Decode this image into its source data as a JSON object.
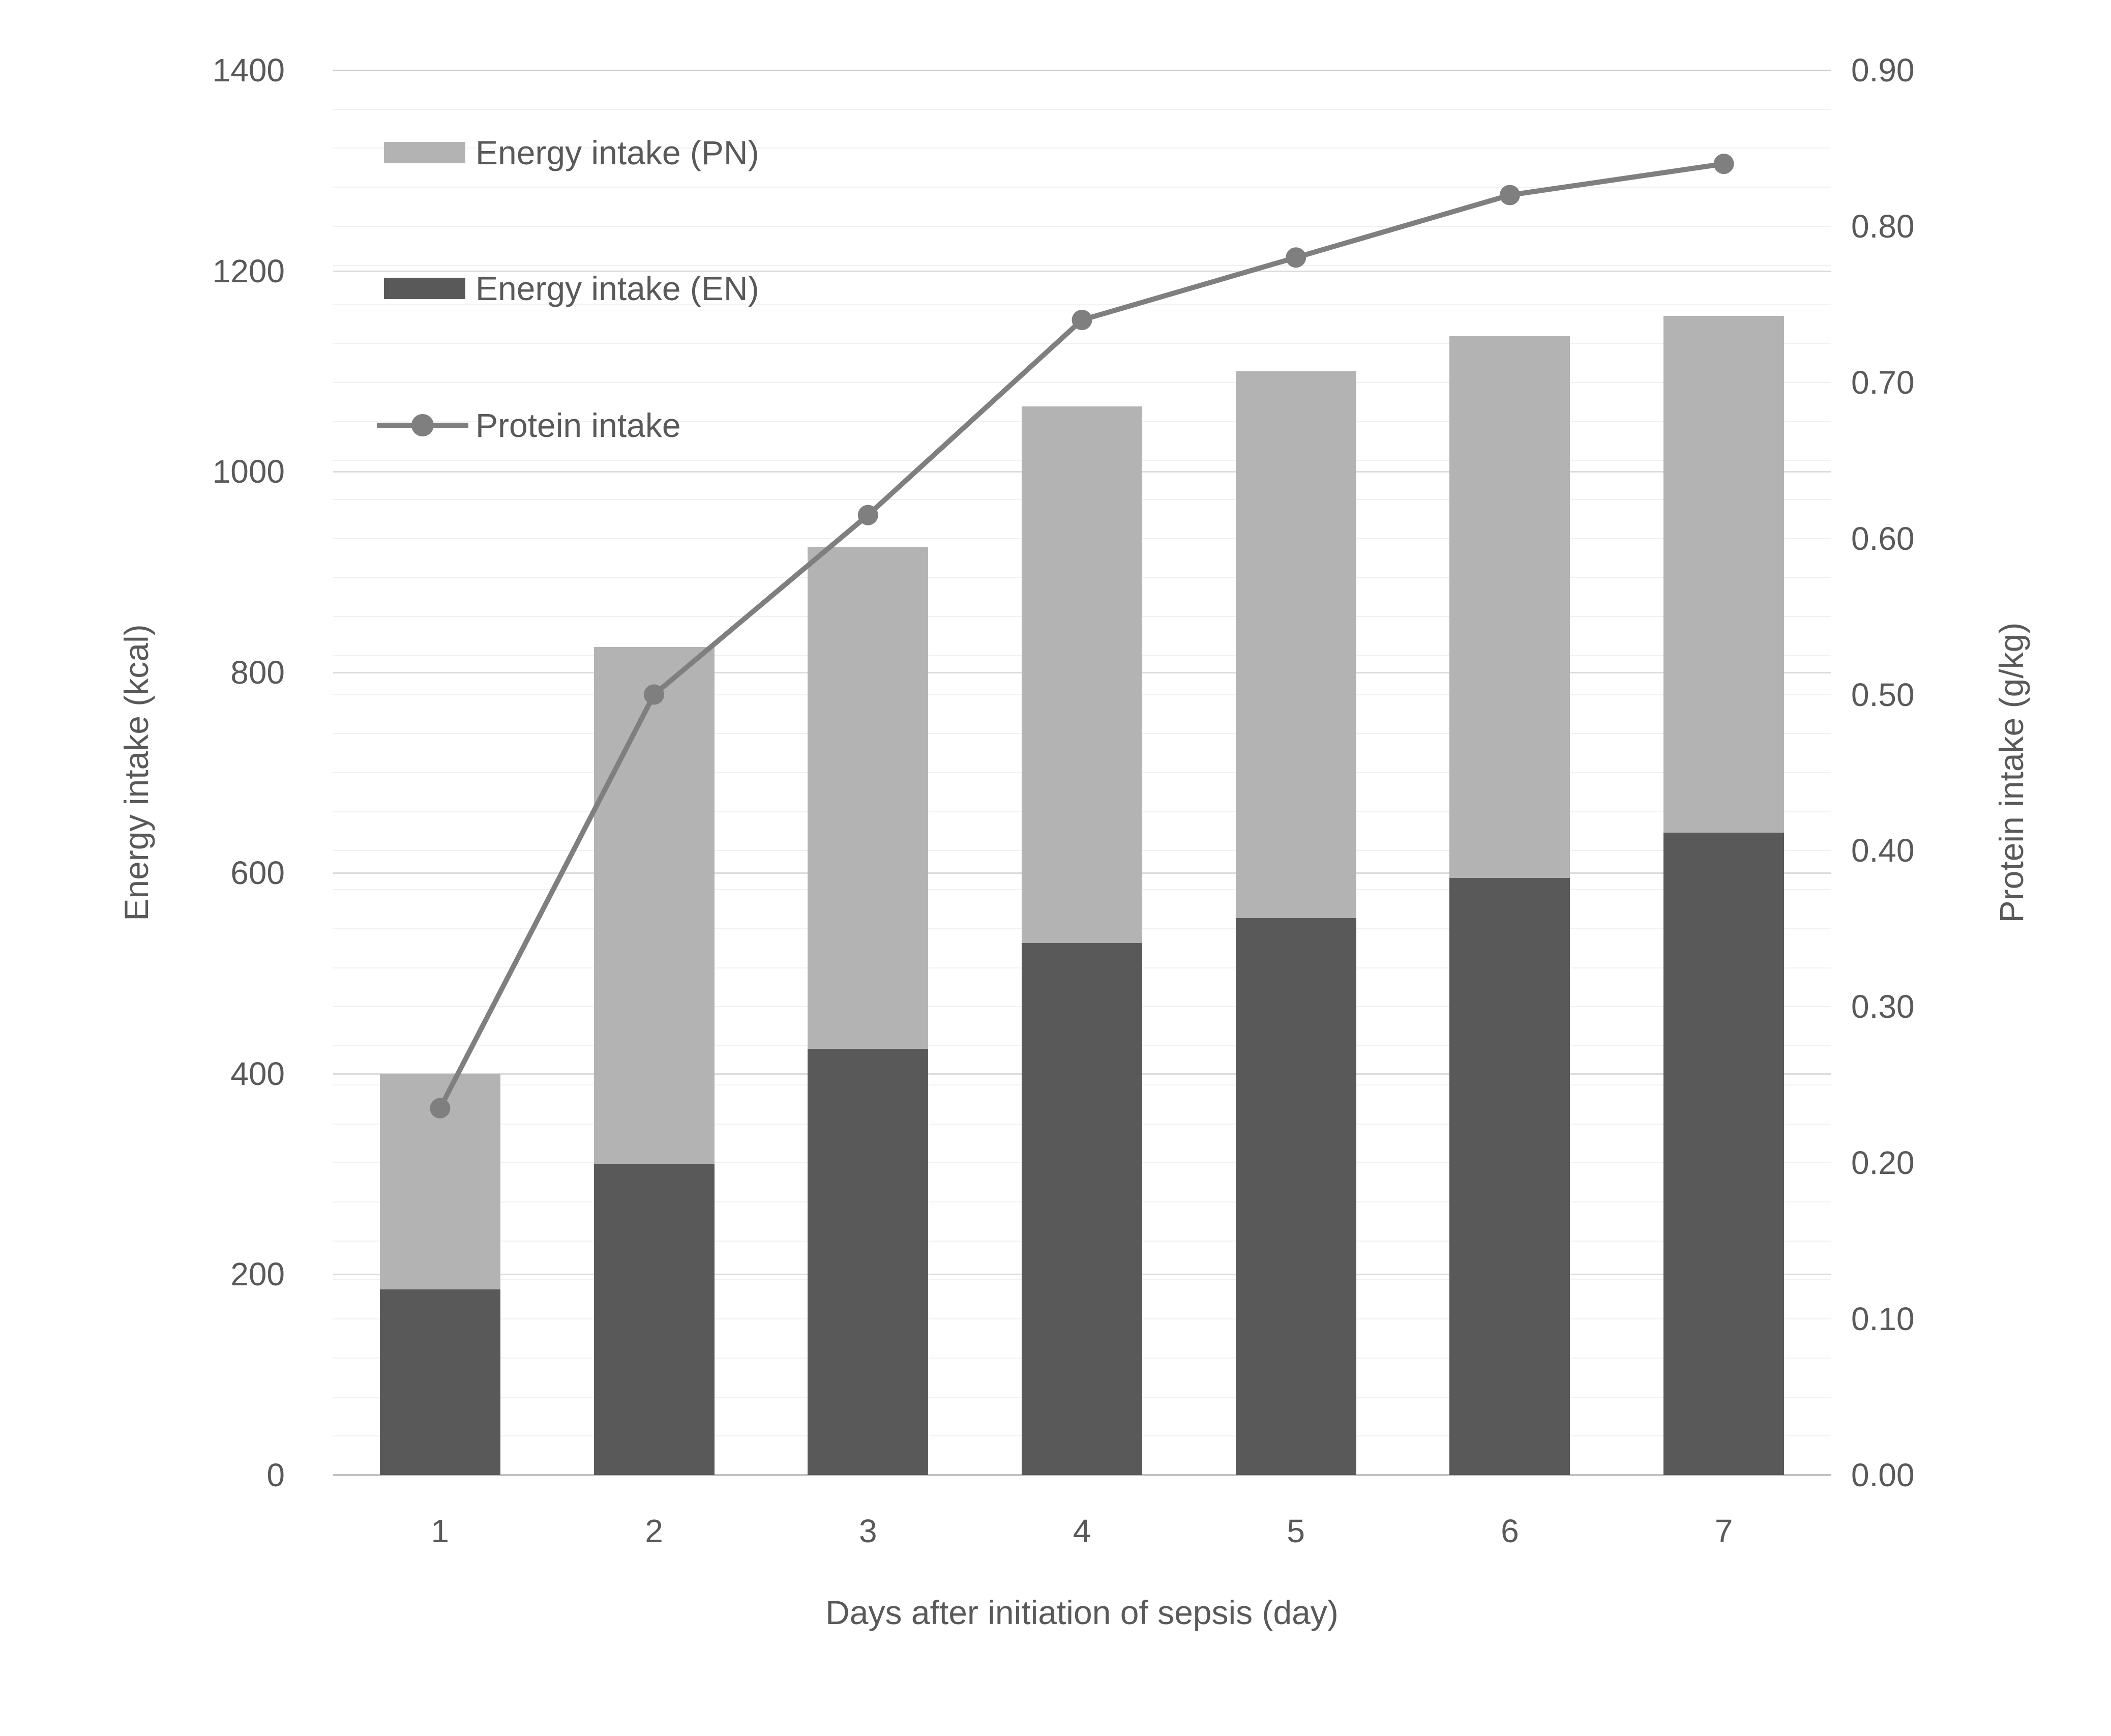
{
  "chart_data": {
    "type": "bar",
    "subtype": "stacked-bars-with-line",
    "categories": [
      "1",
      "2",
      "3",
      "4",
      "5",
      "6",
      "7"
    ],
    "series": [
      {
        "name": "Energy intake (PN)",
        "type": "bar",
        "stack": "energy",
        "axis": "left",
        "color": "#b3b3b3",
        "values": [
          215,
          515,
          500,
          535,
          545,
          540,
          515
        ]
      },
      {
        "name": "Energy intake (EN)",
        "type": "bar",
        "stack": "energy",
        "axis": "left",
        "color": "#595959",
        "values": [
          185,
          310,
          425,
          530,
          555,
          595,
          640
        ]
      },
      {
        "name": "Protein intake",
        "type": "line",
        "axis": "right",
        "color": "#7f7f7f",
        "marker": "circle",
        "values": [
          0.235,
          0.5,
          0.615,
          0.74,
          0.78,
          0.82,
          0.84
        ]
      }
    ],
    "stack_totals": [
      400,
      825,
      925,
      1065,
      1100,
      1135,
      1155
    ],
    "left_axis": {
      "title": "Energy intake (kcal)",
      "min": 0,
      "max": 1400,
      "major_step": 200,
      "tick_labels": [
        "1400",
        "1200",
        "1000",
        "800",
        "600",
        "400",
        "200",
        "0"
      ]
    },
    "right_axis": {
      "title": "Protein intake (g/kg)",
      "min": 0.0,
      "max": 0.9,
      "major_step": 0.1,
      "minor_step": 0.025,
      "tick_labels": [
        "0.90",
        "0.80",
        "0.70",
        "0.60",
        "0.50",
        "0.40",
        "0.30",
        "0.20",
        "0.10",
        "0.00"
      ]
    },
    "x_axis": {
      "title": "Days after initiation of sepsis (day)",
      "tick_labels": [
        "1",
        "2",
        "3",
        "4",
        "5",
        "6",
        "7"
      ]
    },
    "legend": {
      "position": "top-left-inside",
      "entries": [
        {
          "label": "Energy intake (PN)",
          "swatch": "pn"
        },
        {
          "label": "Energy intake (EN)",
          "swatch": "en"
        },
        {
          "label": "Protein intake",
          "swatch": "line-marker"
        }
      ]
    },
    "grid": {
      "major_on": true,
      "minor_on": true
    },
    "colors": {
      "en_bar": "#595959",
      "pn_bar": "#b3b3b3",
      "line": "#7f7f7f",
      "major_grid": "#dcdcdc",
      "minor_grid": "#f1f1f1",
      "axis_line": "#c2c2c2",
      "text": "#595959",
      "background": "#ffffff"
    }
  }
}
